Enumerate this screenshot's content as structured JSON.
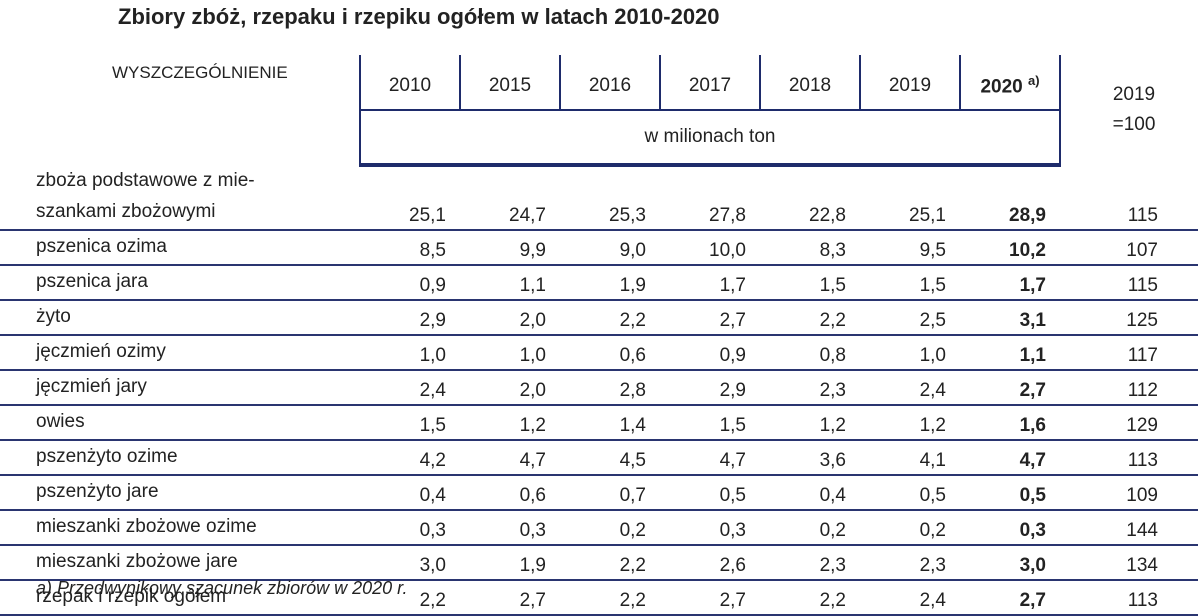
{
  "title": "Zbiory zbóż, rzepaku i rzepiku ogółem w latach 2010-2020",
  "header": {
    "label": "WYSZCZEGÓLNIENIE",
    "years": [
      "2010",
      "2015",
      "2016",
      "2017",
      "2018",
      "2019"
    ],
    "year_current": "2020",
    "year_current_note": "a)",
    "index_lines": [
      "2019",
      "=100"
    ],
    "unit": "w milionach ton"
  },
  "table": {
    "rows": [
      {
        "label": "zboża podstawowe z mie-\nszankami zbożowymi",
        "values": [
          "25,1",
          "24,7",
          "25,3",
          "27,8",
          "22,8",
          "25,1",
          "28,9",
          "115"
        ]
      },
      {
        "label": "pszenica ozima",
        "values": [
          "8,5",
          "9,9",
          "9,0",
          "10,0",
          "8,3",
          "9,5",
          "10,2",
          "107"
        ]
      },
      {
        "label": "pszenica jara",
        "values": [
          "0,9",
          "1,1",
          "1,9",
          "1,7",
          "1,5",
          "1,5",
          "1,7",
          "115"
        ]
      },
      {
        "label": "żyto",
        "values": [
          "2,9",
          "2,0",
          "2,2",
          "2,7",
          "2,2",
          "2,5",
          "3,1",
          "125"
        ]
      },
      {
        "label": "jęczmień ozimy",
        "values": [
          "1,0",
          "1,0",
          "0,6",
          "0,9",
          "0,8",
          "1,0",
          "1,1",
          "117"
        ]
      },
      {
        "label": "jęczmień jary",
        "values": [
          "2,4",
          "2,0",
          "2,8",
          "2,9",
          "2,3",
          "2,4",
          "2,7",
          "112"
        ]
      },
      {
        "label": "owies",
        "values": [
          "1,5",
          "1,2",
          "1,4",
          "1,5",
          "1,2",
          "1,2",
          "1,6",
          "129"
        ]
      },
      {
        "label": "pszenżyto ozime",
        "values": [
          "4,2",
          "4,7",
          "4,5",
          "4,7",
          "3,6",
          "4,1",
          "4,7",
          "113"
        ]
      },
      {
        "label": "pszenżyto jare",
        "values": [
          "0,4",
          "0,6",
          "0,7",
          "0,5",
          "0,4",
          "0,5",
          "0,5",
          "109"
        ]
      },
      {
        "label": "mieszanki zbożowe ozime",
        "values": [
          "0,3",
          "0,3",
          "0,2",
          "0,3",
          "0,2",
          "0,2",
          "0,3",
          "144"
        ]
      },
      {
        "label": "mieszanki zbożowe jare",
        "values": [
          "3,0",
          "1,9",
          "2,2",
          "2,6",
          "2,3",
          "2,3",
          "3,0",
          "134"
        ]
      },
      {
        "label": "rzepak i rzepik ogółem",
        "values": [
          "2,2",
          "2,7",
          "2,2",
          "2,7",
          "2,2",
          "2,4",
          "2,7",
          "113"
        ]
      }
    ]
  },
  "footnote": "a) Przedwynikowy szacunek zbiorów w 2020 r."
}
